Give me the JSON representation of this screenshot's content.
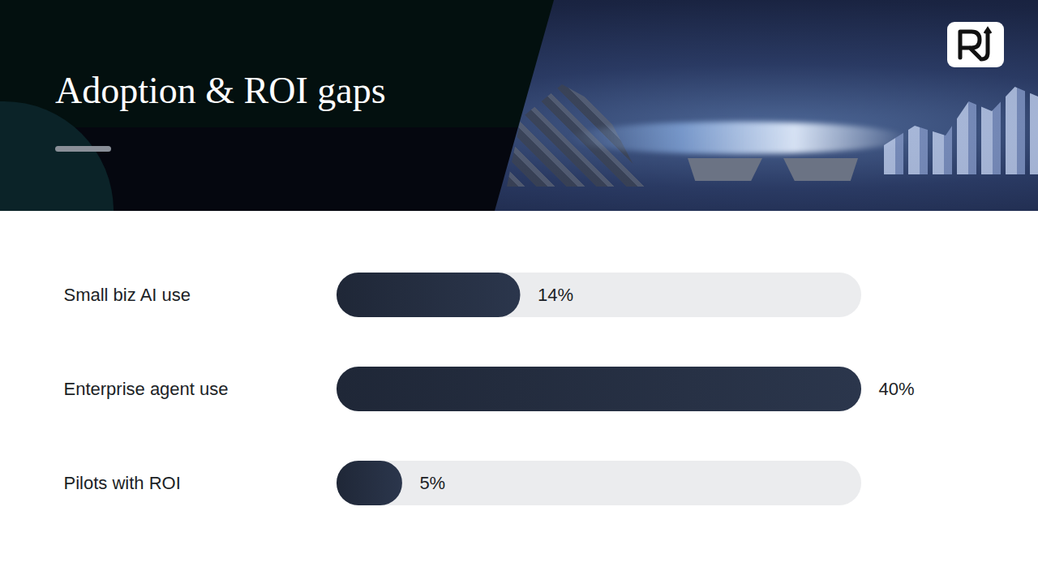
{
  "chart_data": {
    "type": "bar",
    "orientation": "horizontal",
    "title": "Adoption & ROI gaps",
    "categories": [
      "Small biz AI use",
      "Enterprise agent use",
      "Pilots with ROI"
    ],
    "values": [
      14,
      40,
      5
    ],
    "value_labels": [
      "14%",
      "40%",
      "5%"
    ],
    "data_labels": true,
    "xlim": [
      0,
      40
    ],
    "tick_labels": "y",
    "grid": false,
    "color": "#1f2737"
  }
}
